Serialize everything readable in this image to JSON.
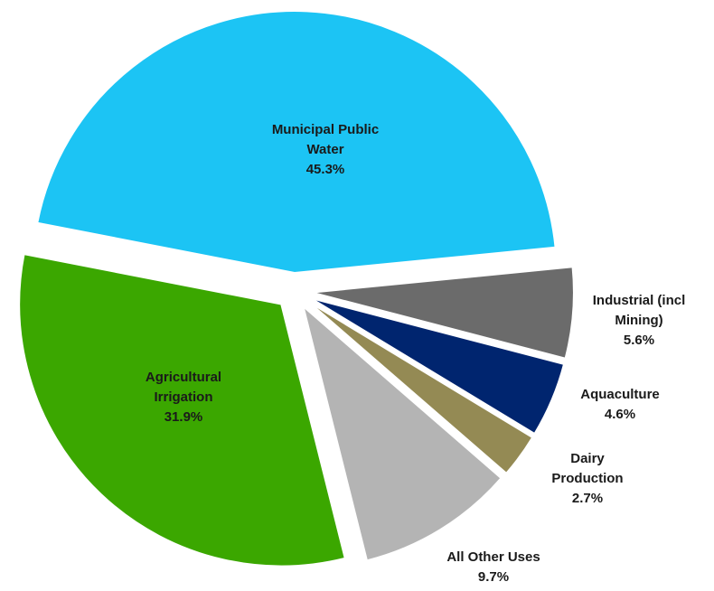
{
  "chart_data": {
    "type": "pie",
    "categories": [
      "Municipal Public Water",
      "Industrial (incl Mining)",
      "Aquaculture",
      "Dairy Production",
      "All Other Uses",
      "Agricultural Irrigation"
    ],
    "values": [
      45.3,
      5.6,
      4.6,
      2.7,
      9.7,
      31.9
    ],
    "value_labels": [
      "45.3%",
      "5.6%",
      "4.6%",
      "2.7%",
      "9.7%",
      "31.9%"
    ],
    "colors": [
      "#1cc4f4",
      "#6b6b6b",
      "#00256f",
      "#948a54",
      "#b4b4b4",
      "#3ba700"
    ]
  }
}
